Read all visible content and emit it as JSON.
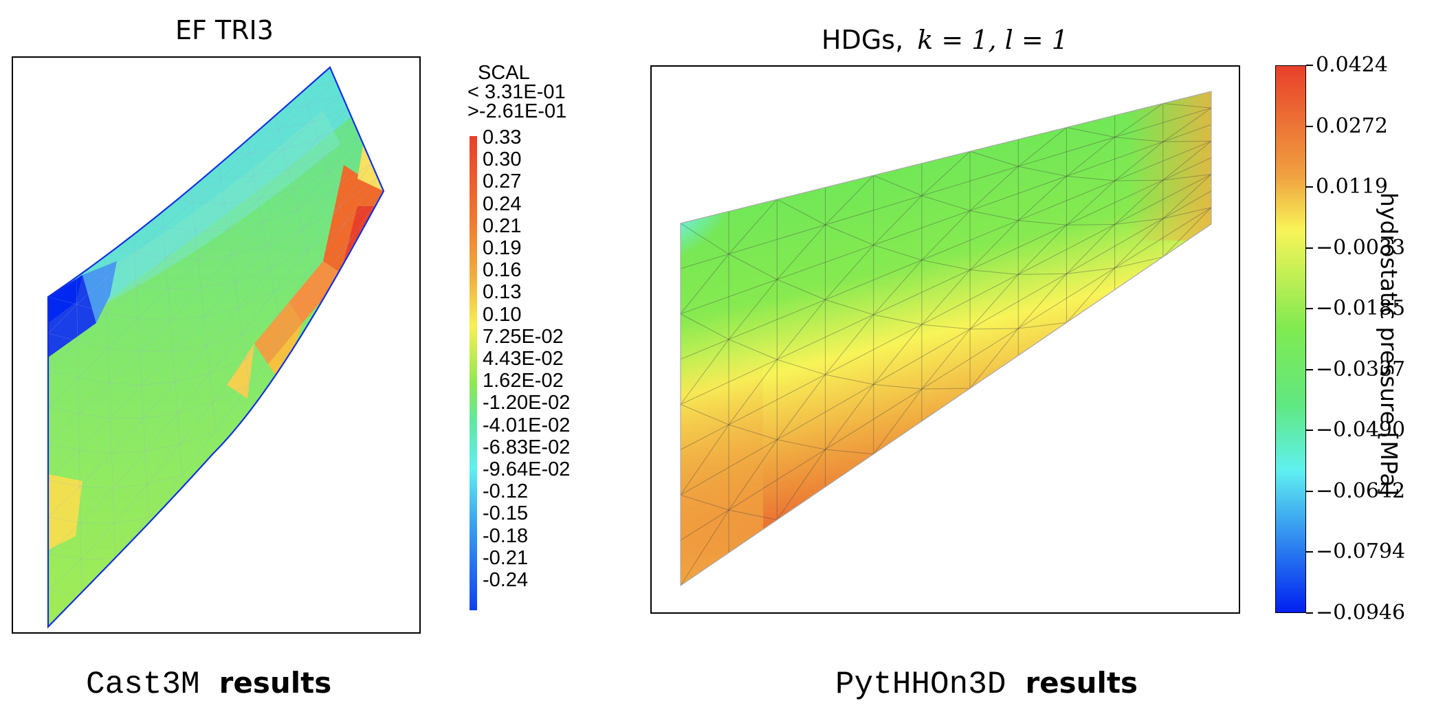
{
  "left_panel": {
    "title": "EF TRI3",
    "caption_code": "Cast3M",
    "caption_word": "results",
    "legend": {
      "header": "SCAL",
      "max_line": "< 3.31E-01",
      "min_line": ">-2.61E-01",
      "ticks": [
        "0.33",
        "0.30",
        "0.27",
        "0.24",
        "0.21",
        "0.19",
        "0.16",
        "0.13",
        "0.10",
        "7.25E-02",
        "4.43E-02",
        "1.62E-02",
        "-1.20E-02",
        "-4.01E-02",
        "-6.83E-02",
        "-9.64E-02",
        "-0.12",
        "-0.15",
        "-0.18",
        "-0.21",
        "-0.24"
      ]
    }
  },
  "right_panel": {
    "title_prefix": "HDGs,",
    "title_math": "k = 1, l = 1",
    "caption_code": "PytHHOn3D",
    "caption_word": "results",
    "colorbar": {
      "label": "hydrostatic pressure [MPa]",
      "ticks": [
        "0.0424",
        "0.0272",
        "0.0119",
        "−0.0033",
        "−0.0185",
        "−0.0337",
        "−0.0490",
        "−0.0642",
        "−0.0794",
        "−0.0946"
      ]
    }
  },
  "colors": {
    "red": "#e8402a",
    "orange": "#f0a040",
    "yellow": "#f8f050",
    "green": "#70e860",
    "cyan": "#60f0f0",
    "blue": "#2060f0",
    "mesh_edge": "#1030e0"
  }
}
